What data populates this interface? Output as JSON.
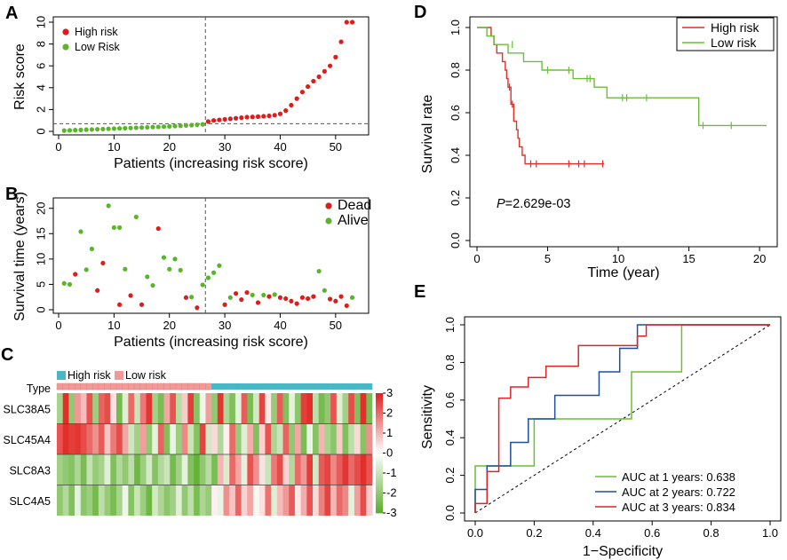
{
  "colors": {
    "high": "#e01b1b",
    "low": "#5ab52a",
    "dead": "#e01b1b",
    "alive": "#5ab52a",
    "km_high": "#e0302c",
    "km_low": "#6abf38",
    "roc1": "#6abf38",
    "roc2": "#1f4ea0",
    "roc3": "#e02424",
    "type_high": "#4ab8c4",
    "type_low": "#f29a9a",
    "heat_pos": "#e0201c",
    "heat_neg": "#5aad2a"
  },
  "chart_data": [
    {
      "id": "A",
      "panel_label": "A",
      "type": "scatter",
      "xlabel": "Patients (increasing risk score)",
      "ylabel": "Risk score",
      "xlim": [
        0,
        55
      ],
      "ylim": [
        0,
        10
      ],
      "xticks": [
        0,
        10,
        20,
        30,
        40,
        50
      ],
      "yticks": [
        0,
        2,
        4,
        6,
        8,
        10
      ],
      "cutoff_x": 26.5,
      "cutoff_y": 0.7,
      "legend": [
        "High risk",
        "Low Risk"
      ],
      "series": [
        {
          "name": "Low Risk",
          "x": [
            1,
            2,
            3,
            4,
            5,
            6,
            7,
            8,
            9,
            10,
            11,
            12,
            13,
            14,
            15,
            16,
            17,
            18,
            19,
            20,
            21,
            22,
            23,
            24,
            25,
            26
          ],
          "y": [
            0.07,
            0.09,
            0.11,
            0.13,
            0.15,
            0.17,
            0.19,
            0.21,
            0.23,
            0.25,
            0.27,
            0.29,
            0.31,
            0.33,
            0.35,
            0.37,
            0.39,
            0.41,
            0.43,
            0.45,
            0.48,
            0.51,
            0.54,
            0.57,
            0.6,
            0.64
          ]
        },
        {
          "name": "High risk",
          "x": [
            27,
            28,
            29,
            30,
            31,
            32,
            33,
            34,
            35,
            36,
            37,
            38,
            39,
            40,
            41,
            42,
            43,
            44,
            45,
            46,
            47,
            48,
            49,
            50,
            51,
            52,
            53
          ],
          "y": [
            0.9,
            1.0,
            1.05,
            1.1,
            1.15,
            1.2,
            1.25,
            1.3,
            1.32,
            1.35,
            1.38,
            1.42,
            1.48,
            1.6,
            1.9,
            2.4,
            3.0,
            3.6,
            4.1,
            4.6,
            5.0,
            5.5,
            6.0,
            6.8,
            8.2,
            10.0,
            10.0
          ]
        }
      ]
    },
    {
      "id": "B",
      "panel_label": "B",
      "type": "scatter",
      "xlabel": "Patients (increasing risk score)",
      "ylabel": "Survival time (years)",
      "xlim": [
        0,
        55
      ],
      "ylim": [
        0,
        21
      ],
      "xticks": [
        0,
        10,
        20,
        30,
        40,
        50
      ],
      "yticks": [
        0,
        5,
        10,
        15,
        20
      ],
      "cutoff_x": 26.5,
      "legend": [
        "Dead",
        "Alive"
      ],
      "series": [
        {
          "name": "Dead",
          "x": [
            3,
            7,
            8,
            11,
            13,
            15,
            18,
            23,
            25,
            30,
            32,
            33,
            34,
            36,
            38,
            40,
            41,
            42,
            43,
            44,
            45,
            46,
            49,
            50,
            51,
            52
          ],
          "y": [
            7.0,
            3.8,
            9.2,
            1.0,
            2.8,
            1.0,
            16.0,
            2.4,
            0.4,
            1.0,
            3.2,
            2.0,
            3.4,
            1.4,
            2.6,
            2.4,
            2.2,
            1.7,
            1.2,
            2.4,
            2.2,
            2.6,
            2.1,
            1.7,
            2.6,
            0.8
          ]
        },
        {
          "name": "Alive",
          "x": [
            1,
            2,
            4,
            5,
            6,
            9,
            10,
            11,
            12,
            14,
            16,
            17,
            19,
            20,
            21,
            22,
            24,
            26,
            27,
            28,
            29,
            31,
            35,
            37,
            39,
            47,
            48,
            53
          ],
          "y": [
            5.2,
            5.0,
            15.4,
            7.9,
            12.0,
            20.5,
            16.2,
            16.2,
            8.0,
            18.3,
            6.5,
            4.8,
            10.3,
            8.0,
            10.0,
            7.8,
            2.5,
            4.9,
            6.3,
            7.3,
            8.7,
            2.4,
            2.9,
            2.9,
            3.0,
            7.6,
            3.8,
            2.4
          ]
        }
      ]
    },
    {
      "id": "C",
      "panel_label": "C",
      "type": "heatmap",
      "type_label": "Type",
      "legend": [
        "High risk",
        "Low risk"
      ],
      "rows": [
        "SLC38A5",
        "SLC45A4",
        "SLC8A3",
        "SLC4A5"
      ],
      "n_low": 26,
      "scale": [
        3,
        2,
        1,
        0,
        -1,
        -2,
        -3
      ],
      "values": [
        [
          -1.6,
          2.8,
          -2.0,
          1.4,
          0.9,
          2.3,
          -1.8,
          2.1,
          2.4,
          0.4,
          -2.5,
          -0.6,
          2.0,
          -1.0,
          1.8,
          2.7,
          -1.7,
          -2.4,
          1.2,
          2.3,
          -1.3,
          0.7,
          2.6,
          -2.2,
          -0.3,
          1.3,
          -2.0,
          2.7,
          -1.5,
          -2.3,
          -0.5,
          2.2,
          -2.4,
          -0.8,
          2.5,
          0.3,
          -1.9,
          2.2,
          -2.3,
          -0.5,
          -2.1,
          2.6,
          2.8,
          -1.2,
          -2.5,
          -2.0,
          2.3,
          -0.6,
          -1.7,
          2.4,
          -2.3,
          2.8,
          -2.4
        ],
        [
          2.3,
          2.8,
          2.6,
          2.7,
          2.4,
          2.0,
          1.5,
          2.2,
          0.8,
          1.8,
          2.4,
          1.2,
          -0.9,
          -1.7,
          1.3,
          -2.0,
          -0.5,
          2.1,
          -2.3,
          -0.4,
          -1.8,
          1.6,
          -1.0,
          -2.2,
          2.5,
          -0.8,
          0.5,
          -1.4,
          0.2,
          2.0,
          -1.9,
          -0.6,
          1.1,
          -2.3,
          0.6,
          2.3,
          -1.5,
          -1.0,
          2.1,
          -2.0,
          1.2,
          -2.4,
          -0.4,
          -2.2,
          1.0,
          -1.6,
          -2.1,
          0.7,
          -2.3,
          -1.2,
          0.5,
          -2.2,
          1.5
        ],
        [
          -1.7,
          -2.0,
          -2.2,
          -1.5,
          -2.4,
          -1.1,
          -1.9,
          -1.6,
          -0.6,
          -2.3,
          -1.4,
          -2.0,
          -1.2,
          -2.6,
          -1.8,
          -0.8,
          -2.2,
          -1.4,
          -1.0,
          -2.5,
          -1.7,
          -0.5,
          -2.3,
          -2.8,
          -2.0,
          -1.3,
          -2.4,
          1.0,
          -0.7,
          2.0,
          1.2,
          -0.5,
          2.3,
          1.5,
          0.4,
          -1.0,
          1.8,
          2.4,
          0.6,
          -1.4,
          2.0,
          1.4,
          2.6,
          -0.8,
          2.2,
          2.5,
          1.6,
          2.2,
          2.7,
          2.0,
          2.4,
          2.8,
          2.3
        ],
        [
          -2.0,
          -1.4,
          -2.3,
          -0.5,
          -2.1,
          -1.8,
          -2.5,
          -1.2,
          -1.9,
          -2.4,
          -1.6,
          -0.3,
          -2.2,
          -1.0,
          -1.8,
          -2.6,
          -0.8,
          -1.5,
          -2.1,
          -1.7,
          -0.6,
          -2.0,
          -1.2,
          -2.4,
          -1.5,
          -1.9,
          0.2,
          -0.4,
          1.5,
          0.8,
          2.1,
          0.6,
          1.2,
          -0.2,
          0.4,
          1.9,
          -0.6,
          0.9,
          1.4,
          2.2,
          0.3,
          1.1,
          2.3,
          0.5,
          1.7,
          2.5,
          1.0,
          2.0,
          1.6,
          -0.5,
          1.3,
          2.4,
          0.7
        ]
      ]
    },
    {
      "id": "D",
      "panel_label": "D",
      "type": "line",
      "subtype": "kaplan-meier",
      "xlabel": "Time (year)",
      "ylabel": "Survival rate",
      "xlim": [
        0,
        21
      ],
      "ylim": [
        0,
        1
      ],
      "xticks": [
        0,
        5,
        10,
        15,
        20
      ],
      "yticks": [
        0.0,
        0.2,
        0.4,
        0.6,
        0.8,
        1.0
      ],
      "annotation_p": "P",
      "annotation_value": "=2.629e-03",
      "legend": [
        "High risk",
        "Low risk"
      ],
      "series": [
        {
          "name": "High risk",
          "steps": [
            [
              0,
              1.0
            ],
            [
              1.0,
              0.96
            ],
            [
              1.2,
              0.92
            ],
            [
              1.4,
              0.88
            ],
            [
              1.8,
              0.84
            ],
            [
              2.0,
              0.8
            ],
            [
              2.1,
              0.76
            ],
            [
              2.2,
              0.72
            ],
            [
              2.4,
              0.64
            ],
            [
              2.6,
              0.56
            ],
            [
              2.8,
              0.52
            ],
            [
              2.9,
              0.48
            ],
            [
              3.0,
              0.44
            ],
            [
              3.2,
              0.4
            ],
            [
              3.4,
              0.36
            ],
            [
              9.0,
              0.36
            ]
          ],
          "censor": [
            [
              2.3,
              0.72
            ],
            [
              2.5,
              0.64
            ],
            [
              3.8,
              0.36
            ],
            [
              4.2,
              0.36
            ],
            [
              6.5,
              0.36
            ],
            [
              7.2,
              0.36
            ],
            [
              7.6,
              0.36
            ],
            [
              8.9,
              0.36
            ]
          ]
        },
        {
          "name": "Low risk",
          "steps": [
            [
              0,
              1.0
            ],
            [
              0.7,
              0.96
            ],
            [
              1.2,
              0.92
            ],
            [
              2.2,
              0.88
            ],
            [
              3.3,
              0.84
            ],
            [
              4.6,
              0.8
            ],
            [
              6.8,
              0.76
            ],
            [
              8.3,
              0.72
            ],
            [
              9.2,
              0.67
            ],
            [
              15.7,
              0.54
            ],
            [
              20.5,
              0.54
            ]
          ],
          "censor": [
            [
              2.5,
              0.92
            ],
            [
              5.0,
              0.8
            ],
            [
              6.5,
              0.8
            ],
            [
              7.8,
              0.76
            ],
            [
              8.0,
              0.76
            ],
            [
              10.3,
              0.67
            ],
            [
              10.6,
              0.67
            ],
            [
              12.0,
              0.67
            ],
            [
              16.0,
              0.54
            ],
            [
              18.0,
              0.54
            ]
          ]
        }
      ]
    },
    {
      "id": "E",
      "panel_label": "E",
      "type": "line",
      "subtype": "roc",
      "xlabel": "1−Specificity",
      "ylabel": "Sensitivity",
      "xlim": [
        0,
        1
      ],
      "ylim": [
        0,
        1
      ],
      "xticks": [
        0.0,
        0.2,
        0.4,
        0.6,
        0.8,
        1.0
      ],
      "yticks": [
        0.0,
        0.2,
        0.4,
        0.6,
        0.8,
        1.0
      ],
      "series": [
        {
          "name": "AUC at 1 years: 0.638",
          "auc": 0.638,
          "points": [
            [
              0,
              0
            ],
            [
              0,
              0.25
            ],
            [
              0.2,
              0.25
            ],
            [
              0.2,
              0.5
            ],
            [
              0.53,
              0.5
            ],
            [
              0.53,
              0.75
            ],
            [
              0.7,
              0.75
            ],
            [
              0.7,
              1.0
            ],
            [
              1,
              1
            ]
          ]
        },
        {
          "name": "AUC at 2 years: 0.722",
          "auc": 0.722,
          "points": [
            [
              0,
              0
            ],
            [
              0,
              0.125
            ],
            [
              0.04,
              0.125
            ],
            [
              0.04,
              0.25
            ],
            [
              0.12,
              0.25
            ],
            [
              0.12,
              0.375
            ],
            [
              0.18,
              0.375
            ],
            [
              0.18,
              0.5
            ],
            [
              0.27,
              0.5
            ],
            [
              0.27,
              0.625
            ],
            [
              0.42,
              0.625
            ],
            [
              0.42,
              0.75
            ],
            [
              0.49,
              0.75
            ],
            [
              0.49,
              0.875
            ],
            [
              0.55,
              0.875
            ],
            [
              0.55,
              1.0
            ],
            [
              0.69,
              1.0
            ],
            [
              1,
              1
            ]
          ]
        },
        {
          "name": "AUC at 3 years: 0.834",
          "auc": 0.834,
          "points": [
            [
              0,
              0
            ],
            [
              0,
              0.05
            ],
            [
              0.04,
              0.05
            ],
            [
              0.04,
              0.22
            ],
            [
              0.08,
              0.22
            ],
            [
              0.08,
              0.61
            ],
            [
              0.12,
              0.61
            ],
            [
              0.12,
              0.67
            ],
            [
              0.18,
              0.67
            ],
            [
              0.18,
              0.72
            ],
            [
              0.24,
              0.72
            ],
            [
              0.24,
              0.78
            ],
            [
              0.35,
              0.78
            ],
            [
              0.35,
              0.89
            ],
            [
              0.55,
              0.89
            ],
            [
              0.55,
              0.94
            ],
            [
              0.58,
              0.94
            ],
            [
              0.58,
              1.0
            ],
            [
              1,
              1
            ]
          ]
        }
      ]
    }
  ]
}
